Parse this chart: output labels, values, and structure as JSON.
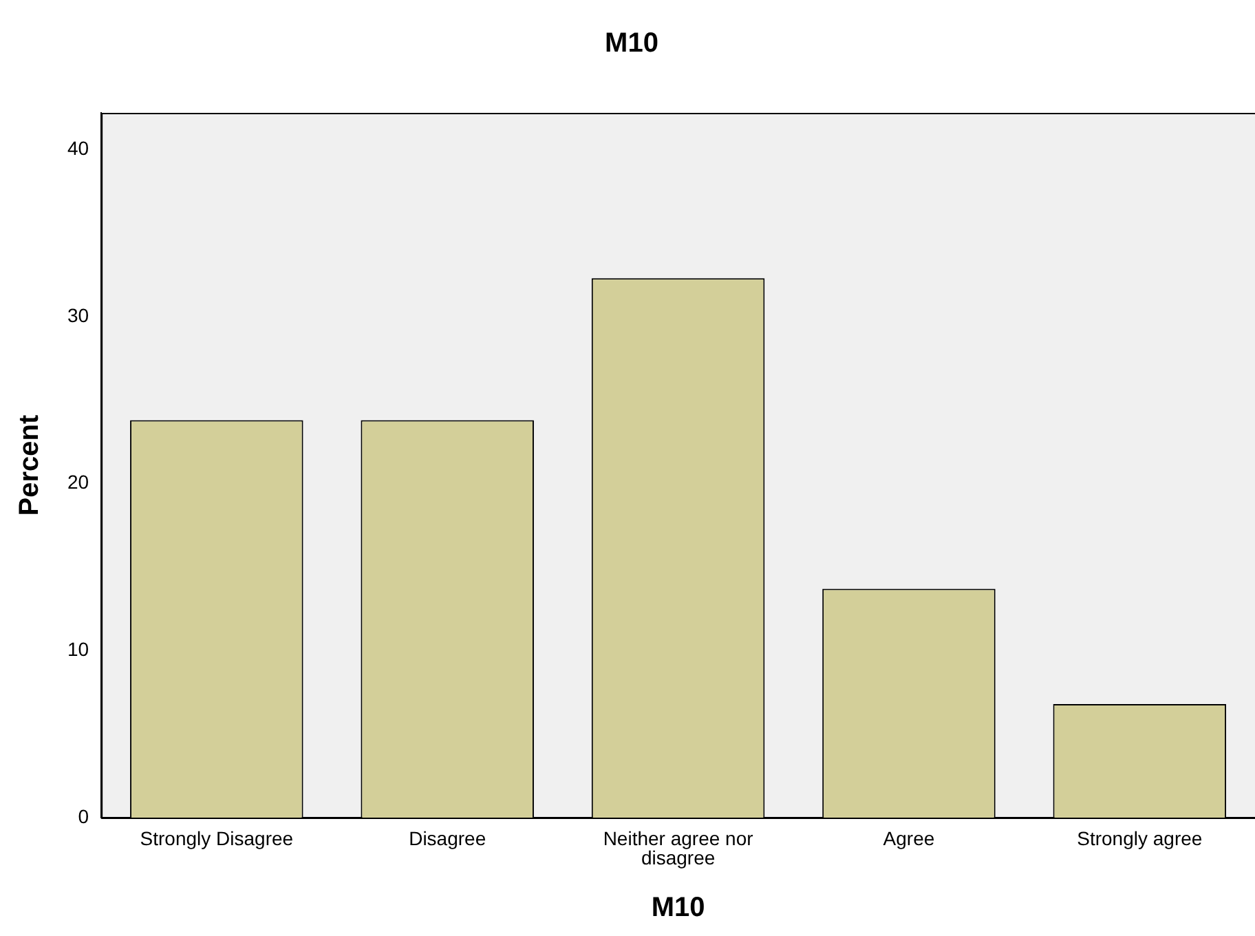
{
  "chart_data": {
    "type": "bar",
    "title": "M10",
    "xlabel": "M10",
    "ylabel": "Percent",
    "categories": [
      "Strongly Disagree",
      "Disagree",
      "Neither agree nor disagree",
      "Agree",
      "Strongly agree"
    ],
    "values": [
      23.8,
      23.8,
      32.3,
      13.7,
      6.8
    ],
    "color": "#d3cf99",
    "ylim": [
      0,
      42.2
    ],
    "yticks": [
      0,
      10,
      20,
      30,
      40
    ],
    "grid": false,
    "legend": false
  }
}
